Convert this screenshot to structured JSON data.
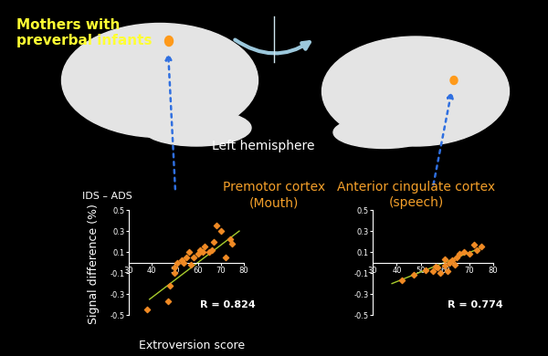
{
  "header": {
    "group": "Mothers with\npreverbal infants",
    "hemisphere": "Left hemisphere"
  },
  "chart_data": [
    {
      "type": "scatter",
      "title": "Premotor cortex",
      "subtitle": "(Mouth)",
      "ylabel": "Signal difference (%)",
      "ylabel_top": "IDS – ADS",
      "xlabel": "Extroversion score",
      "annotation": "R = 0.824",
      "xlim": [
        30,
        80
      ],
      "xticks": [
        30,
        40,
        50,
        60,
        70,
        80
      ],
      "ylim": [
        -0.5,
        0.5
      ],
      "yticks": [
        -0.5,
        -0.3,
        -0.1,
        0.1,
        0.3,
        0.5
      ],
      "series": [
        {
          "type": "scatter",
          "color": "#f08a24",
          "marker": "diamond",
          "x": [
            38,
            47,
            48,
            50,
            50,
            51,
            53,
            54,
            55,
            56,
            57,
            58,
            60,
            61,
            62,
            63,
            65,
            66,
            67,
            68,
            70,
            72,
            74,
            75
          ],
          "values": [
            -0.45,
            -0.37,
            -0.22,
            -0.05,
            -0.1,
            0.0,
            0.02,
            0.0,
            0.05,
            0.1,
            -0.02,
            0.05,
            0.08,
            0.12,
            0.1,
            0.15,
            0.1,
            0.12,
            0.2,
            0.35,
            0.3,
            0.05,
            0.22,
            0.18
          ]
        },
        {
          "type": "line",
          "color": "#a8cc2c",
          "line_style": "solid",
          "x": [
            39,
            78
          ],
          "values": [
            -0.35,
            0.3
          ]
        }
      ]
    },
    {
      "type": "scatter",
      "title": "Anterior cingulate cortex",
      "subtitle": "(speech)",
      "annotation": "R = 0.774",
      "xlim": [
        30,
        80
      ],
      "xticks": [
        30,
        40,
        50,
        60,
        70,
        80
      ],
      "ylim": [
        -0.5,
        0.5
      ],
      "yticks": [
        -0.5,
        -0.3,
        -0.1,
        0.1,
        0.3,
        0.5
      ],
      "series": [
        {
          "type": "scatter",
          "color": "#f08a24",
          "marker": "diamond",
          "x": [
            42,
            47,
            52,
            55,
            56,
            57,
            58,
            60,
            60,
            61,
            62,
            63,
            64,
            65,
            66,
            68,
            70,
            72,
            73,
            75
          ],
          "values": [
            -0.17,
            -0.12,
            -0.07,
            -0.08,
            -0.04,
            -0.05,
            -0.1,
            -0.03,
            0.03,
            -0.08,
            0.0,
            0.02,
            -0.02,
            0.05,
            0.08,
            0.1,
            0.08,
            0.17,
            0.12,
            0.15
          ]
        },
        {
          "type": "line",
          "color": "#a8cc2c",
          "line_style": "solid",
          "x": [
            38,
            76
          ],
          "values": [
            -0.2,
            0.15
          ]
        }
      ]
    }
  ]
}
